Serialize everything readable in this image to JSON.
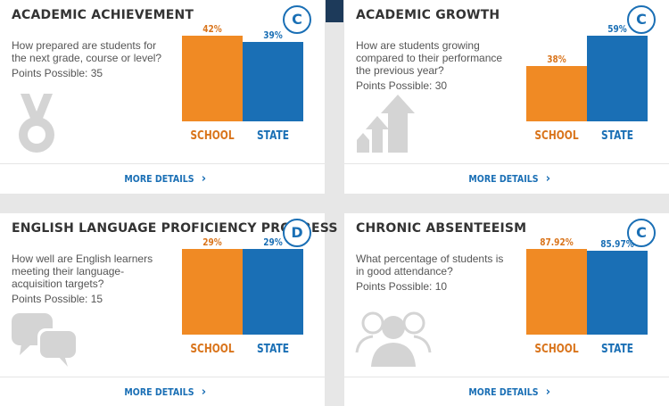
{
  "cards": [
    {
      "title": "ACADEMIC ACHIEVEMENT",
      "grade": "C",
      "question": "How prepared are students for the next grade, course or level?",
      "points": "Points Possible: 35",
      "icon": "medal-icon",
      "school_value": 42,
      "school_label": "42%",
      "state_value": 39,
      "state_label": "39%",
      "school_text": "SCHOOL",
      "state_text": "STATE",
      "more": "MORE DETAILS"
    },
    {
      "title": "ACADEMIC GROWTH",
      "grade": "C",
      "question": "How are students growing compared to their performance the previous year?",
      "points": "Points Possible: 30",
      "icon": "growth-arrows-icon",
      "school_value": 38,
      "school_label": "38%",
      "state_value": 59,
      "state_label": "59%",
      "school_text": "SCHOOL",
      "state_text": "STATE",
      "more": "MORE DETAILS"
    },
    {
      "title": "ENGLISH LANGUAGE PROFICIENCY PROGRESS",
      "grade": "D",
      "question": "How well are English learners meeting their language-acquisition targets?",
      "points": "Points Possible: 15",
      "icon": "speech-bubbles-icon",
      "school_value": 29,
      "school_label": "29%",
      "state_value": 29,
      "state_label": "29%",
      "school_text": "SCHOOL",
      "state_text": "STATE",
      "more": "MORE DETAILS"
    },
    {
      "title": "CHRONIC ABSENTEEISM",
      "grade": "C",
      "question": "What percentage of students is in good attendance?",
      "points": "Points Possible: 10",
      "icon": "people-icon",
      "school_value": 87.92,
      "school_label": "87.92%",
      "state_value": 85.97,
      "state_label": "85.97%",
      "school_text": "SCHOOL",
      "state_text": "STATE",
      "more": "MORE DETAILS"
    }
  ],
  "colors": {
    "school": "#f08a24",
    "state": "#1a6fb5",
    "icon": "#d4d4d4"
  }
}
